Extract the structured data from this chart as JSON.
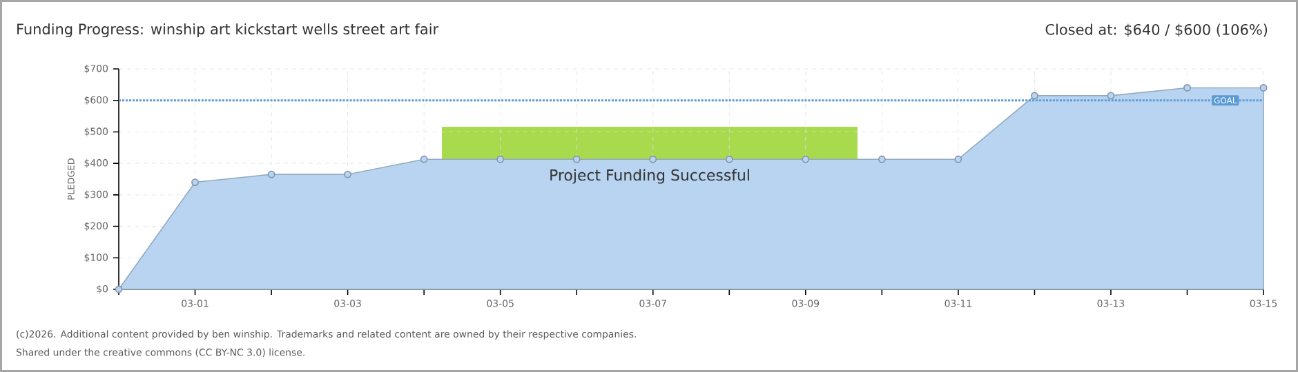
{
  "chart_data": {
    "type": "area",
    "title": "Funding Progress: winship art kickstart wells street art fair",
    "subtitle": "Closed at: $640 / $600 (106%)",
    "ylabel": "PLEDGED",
    "annotations": [
      "Project Funding Successful",
      "(c)2026. Additional content provided by ben winship. Trademarks and related content are owned by their respective companies.",
      "Shared under the creative commons (CC BY-NC 3.0) license."
    ],
    "categories": [
      null,
      "03-01",
      null,
      "03-03",
      null,
      "03-05",
      null,
      "03-07",
      null,
      "03-09",
      null,
      "03-11",
      null,
      "03-13",
      null,
      "03-15"
    ],
    "series": [
      {
        "color": "#b8d4f0",
        "values": [
          0,
          340,
          365,
          365,
          413,
          413,
          413,
          413,
          413,
          413,
          413,
          413,
          615,
          615,
          640,
          640
        ]
      }
    ],
    "ylim": [
      0,
      700
    ],
    "yticks": [
      {
        "value": 0,
        "label": "$0"
      },
      {
        "value": 100,
        "label": "$100"
      },
      {
        "value": 200,
        "label": "$200"
      },
      {
        "value": 300,
        "label": "$300"
      },
      {
        "value": 400,
        "label": "$400"
      },
      {
        "value": 500,
        "label": "$500"
      },
      {
        "value": 600,
        "label": "$600"
      },
      {
        "value": 700,
        "label": "$700"
      }
    ],
    "ref_lines": [
      {
        "axis": "y",
        "value": 600,
        "label": "GOAL",
        "color": "#5b9bd5",
        "line_style": "dotted"
      }
    ],
    "grid": true,
    "marker": "circle"
  }
}
